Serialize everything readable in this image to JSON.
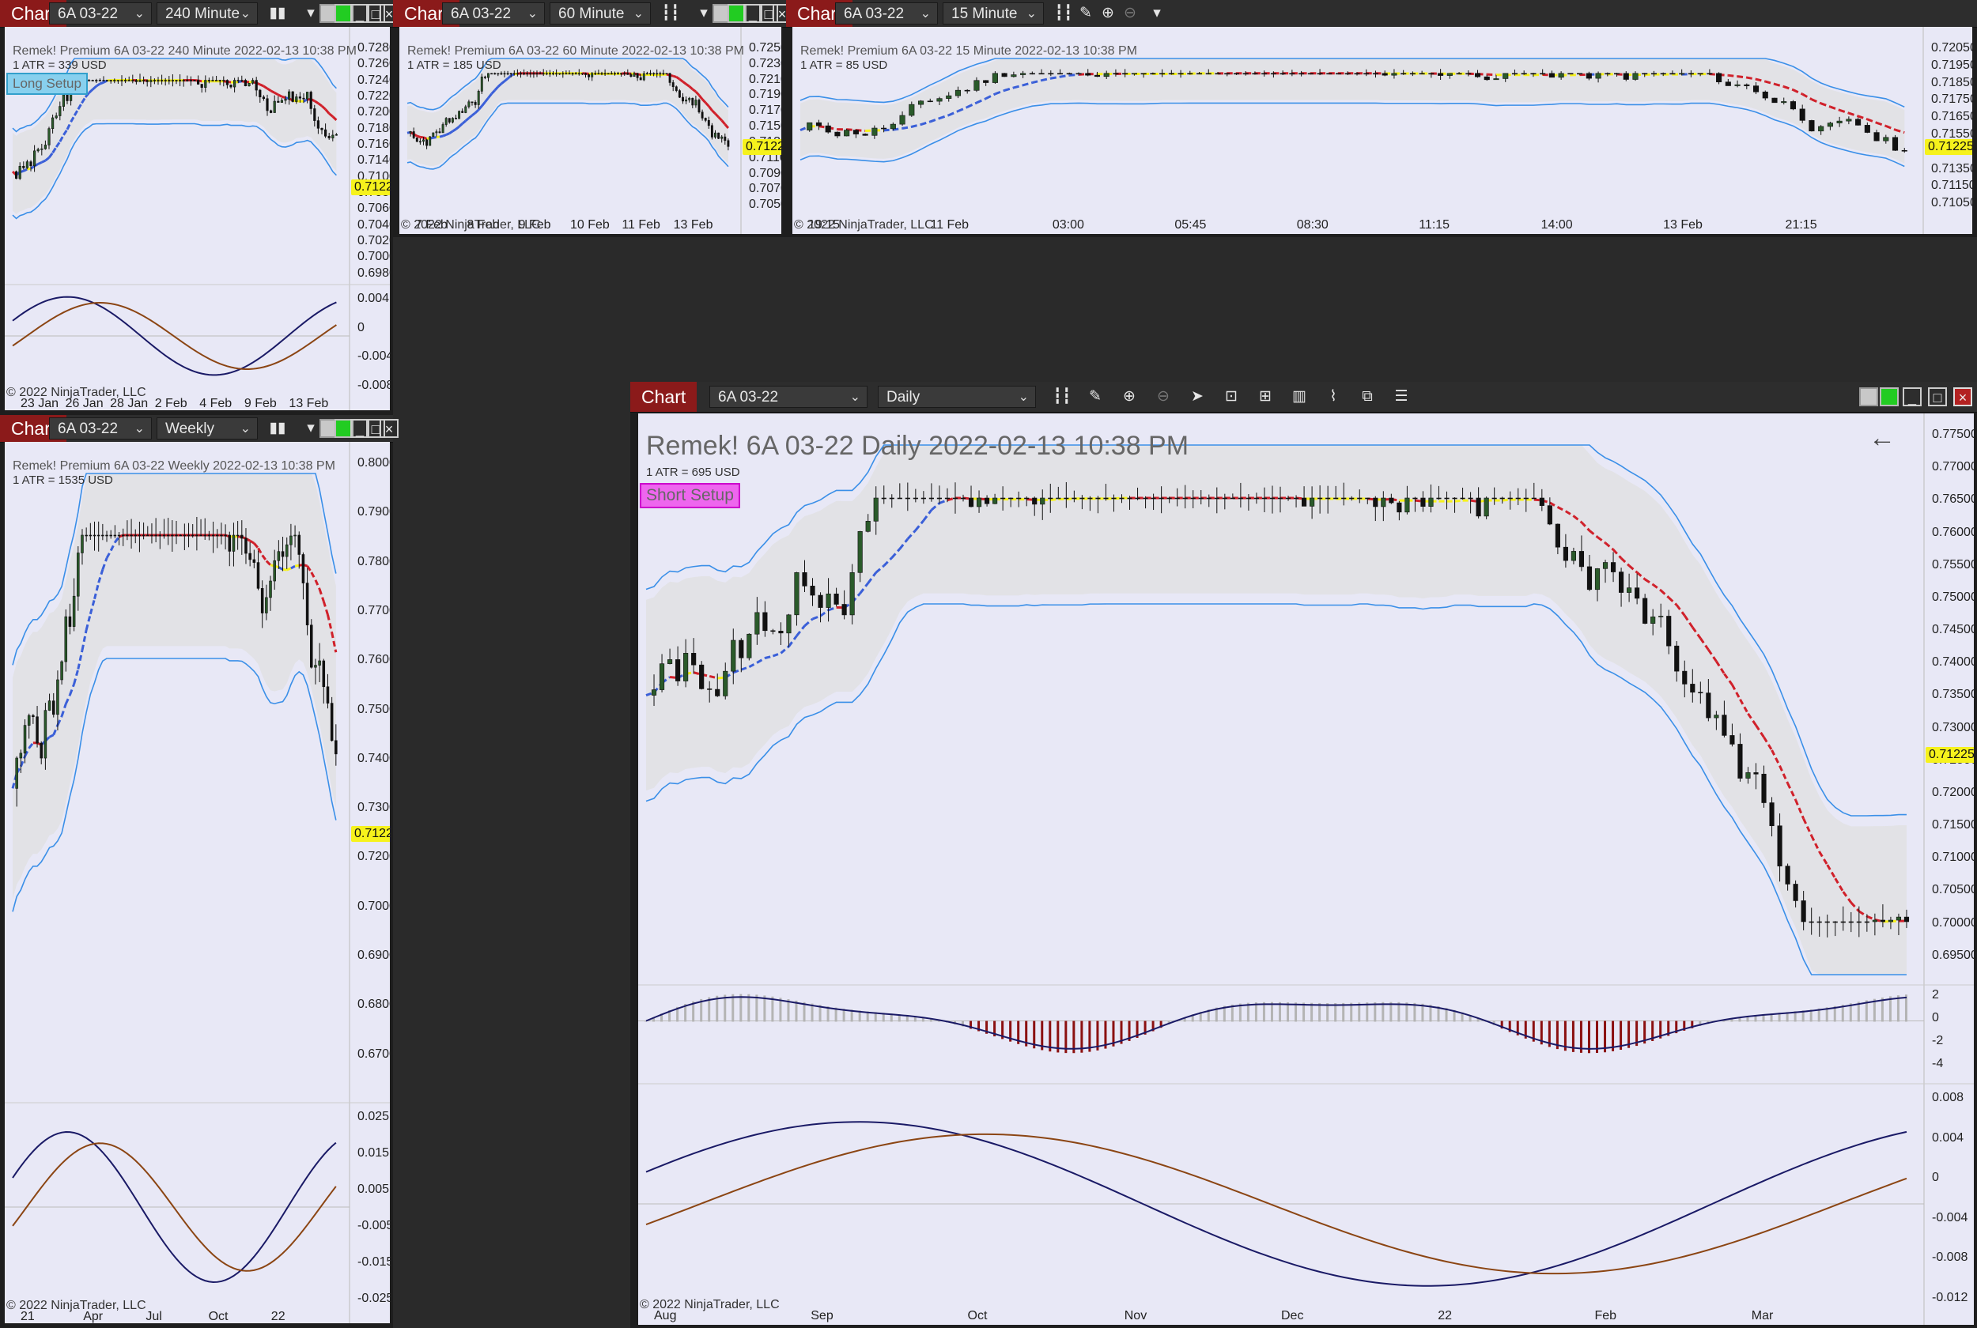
{
  "common": {
    "chart_tab": "Chart",
    "instrument": "6A 03-22",
    "copyright": "© 2022 NinjaTrader, LLC",
    "price_marker": "0.71225"
  },
  "colors": {
    "panel_bg": "#e8e8f6",
    "band_fill": "#e0e0e0",
    "band_line": "#3a8fe8",
    "trail_red": "#d0202a",
    "trail_blue": "#3a5fd8",
    "trail_yellow": "#f6f21c",
    "macd_dark": "#1a1a66",
    "macd_brown": "#8b4513",
    "hist_red": "#8b1010",
    "hist_grey": "#b4b4b4",
    "price_label": "#f6f21c",
    "chart_tab_bg": "#8b1a1a"
  },
  "toolbar_icons": [
    "bar-type-icon",
    "pencil-icon",
    "zoom-in-icon",
    "zoom-out-icon",
    "pointer-icon",
    "data-box-icon",
    "properties-icon",
    "indicators-icon",
    "strategies-icon",
    "share-icon",
    "list-icon"
  ],
  "charts": [
    {
      "id": "c240",
      "interval": "240 Minute",
      "header": "Remek!  Premium  6A 03-22  240 Minute  2022-02-13 10:38 PM",
      "atr": "1 ATR = 339 USD",
      "setup": "Long Setup",
      "y_ticks": [
        "0.72800",
        "0.72600",
        "0.72400",
        "0.72200",
        "0.72000",
        "0.71800",
        "0.71600",
        "0.71400",
        "0.71000",
        "0.70800",
        "0.70600",
        "0.70400",
        "0.70200",
        "0.70000",
        "0.69800"
      ],
      "osc_ticks": [
        "0.004",
        "0",
        "-0.004",
        "-0.008"
      ],
      "x_ticks": [
        "23 Jan",
        "26 Jan",
        "28 Jan",
        "2 Feb",
        "4 Feb",
        "9 Feb",
        "13 Feb"
      ]
    },
    {
      "id": "c60",
      "interval": "60 Minute",
      "header": "Remek!  Premium  6A 03-22  60 Minute  2022-02-13 10:38 PM",
      "atr": "1 ATR = 185 USD",
      "y_ticks": [
        "0.72500",
        "0.72300",
        "0.72100",
        "0.71900",
        "0.71700",
        "0.71500",
        "0.71300",
        "0.71100",
        "0.70900",
        "0.70700",
        "0.70500"
      ],
      "x_ticks": [
        "7 Feb",
        "8 Feb",
        "9 Feb",
        "10 Feb",
        "11 Feb",
        "13 Feb"
      ]
    },
    {
      "id": "c15",
      "interval": "15 Minute",
      "header": "Remek!  Premium  6A 03-22  15 Minute  2022-02-13 10:38 PM",
      "atr": "1 ATR = 85 USD",
      "y_ticks": [
        "0.72050",
        "0.71950",
        "0.71850",
        "0.71750",
        "0.71650",
        "0.71550",
        "0.71450",
        "0.71350",
        "0.71150",
        "0.71050"
      ],
      "x_ticks": [
        "19:15",
        "11 Feb",
        "03:00",
        "05:45",
        "08:30",
        "11:15",
        "14:00",
        "13 Feb",
        "21:15"
      ]
    },
    {
      "id": "cweekly",
      "interval": "Weekly",
      "header": "Remek!  Premium  6A 03-22  Weekly  2022-02-13 10:38 PM",
      "atr": "1 ATR = 1535 USD",
      "y_ticks": [
        "0.80000",
        "0.79000",
        "0.78000",
        "0.77000",
        "0.76000",
        "0.75000",
        "0.74000",
        "0.73000",
        "0.72000",
        "0.70000",
        "0.69000",
        "0.68000",
        "0.67000"
      ],
      "osc_ticks": [
        "0.025",
        "0.015",
        "0.005",
        "-0.005",
        "-0.015",
        "-0.025"
      ],
      "x_ticks": [
        "21",
        "Apr",
        "Jul",
        "Oct",
        "22"
      ]
    },
    {
      "id": "cdaily",
      "interval": "Daily",
      "header": "Remek!  6A 03-22  Daily  2022-02-13 10:38 PM",
      "atr": "1 ATR = 695 USD",
      "setup": "Short Setup",
      "y_ticks": [
        "0.77500",
        "0.77000",
        "0.76500",
        "0.76000",
        "0.75500",
        "0.75000",
        "0.74500",
        "0.74000",
        "0.73500",
        "0.73000",
        "0.72500",
        "0.72000",
        "0.71500",
        "0.71000",
        "0.70500",
        "0.70000",
        "0.69500"
      ],
      "hist_ticks": [
        "2",
        "0",
        "-2",
        "-4"
      ],
      "osc_ticks": [
        "0.008",
        "0.004",
        "0",
        "-0.004",
        "-0.008",
        "-0.012"
      ],
      "x_ticks": [
        "Aug",
        "Sep",
        "Oct",
        "Nov",
        "Dec",
        "22",
        "Feb",
        "Mar"
      ]
    }
  ]
}
